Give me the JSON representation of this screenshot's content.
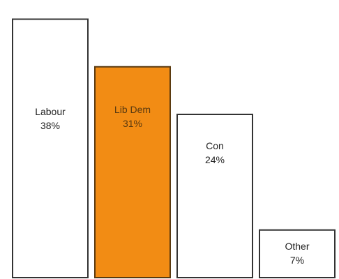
{
  "chart_data": {
    "type": "bar",
    "categories": [
      "Labour",
      "Lib Dem",
      "Con",
      "Other"
    ],
    "values": [
      38,
      31,
      24,
      7
    ],
    "value_labels": [
      "38%",
      "31%",
      "24%",
      "7%"
    ],
    "highlight_index": 1,
    "ylim": [
      0,
      40
    ],
    "grid": false,
    "title": "",
    "xlabel": "",
    "ylabel": "",
    "colors": {
      "bar_fill": "#ffffff",
      "bar_stroke": "#333333",
      "highlight_fill": "#f28c14",
      "highlight_stroke": "#5a3a10",
      "label_text": "#222222",
      "highlight_label_text": "#5a3a10"
    }
  }
}
